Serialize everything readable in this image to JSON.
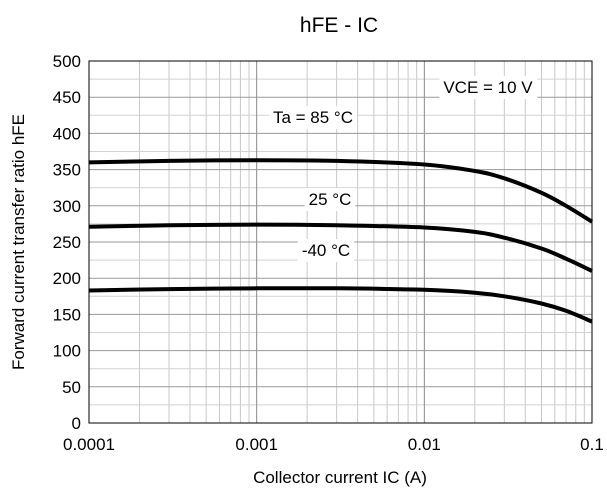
{
  "chart_data": {
    "type": "line",
    "title": "hFE - IC",
    "xlabel": "Collector current IC (A)",
    "ylabel": "Forward current transfer ratio hFE",
    "xscale": "log",
    "xlim": [
      0.0001,
      0.1
    ],
    "ylim": [
      0,
      500
    ],
    "grid": true,
    "x_ticks": [
      "0.0001",
      "0.001",
      "0.01",
      "0.1"
    ],
    "y_ticks": [
      "0",
      "50",
      "100",
      "150",
      "200",
      "250",
      "300",
      "350",
      "400",
      "450",
      "500"
    ],
    "annotations": [
      "VCE = 10 V"
    ],
    "series": [
      {
        "name": "Ta = 85 °C",
        "color": "#000000",
        "x": [
          0.0001,
          0.0003,
          0.001,
          0.003,
          0.01,
          0.02,
          0.03,
          0.05,
          0.07,
          0.1
        ],
        "y": [
          360,
          362,
          363,
          362,
          357,
          348,
          338,
          318,
          300,
          278
        ]
      },
      {
        "name": "25 °C",
        "color": "#000000",
        "x": [
          0.0001,
          0.0003,
          0.001,
          0.003,
          0.01,
          0.02,
          0.03,
          0.05,
          0.07,
          0.1
        ],
        "y": [
          271,
          273,
          274,
          273,
          270,
          264,
          256,
          241,
          227,
          210
        ]
      },
      {
        "name": "-40 °C",
        "color": "#000000",
        "x": [
          0.0001,
          0.0003,
          0.001,
          0.003,
          0.01,
          0.02,
          0.03,
          0.05,
          0.07,
          0.1
        ],
        "y": [
          183,
          185,
          186,
          186,
          184,
          180,
          175,
          165,
          155,
          140
        ]
      }
    ]
  }
}
